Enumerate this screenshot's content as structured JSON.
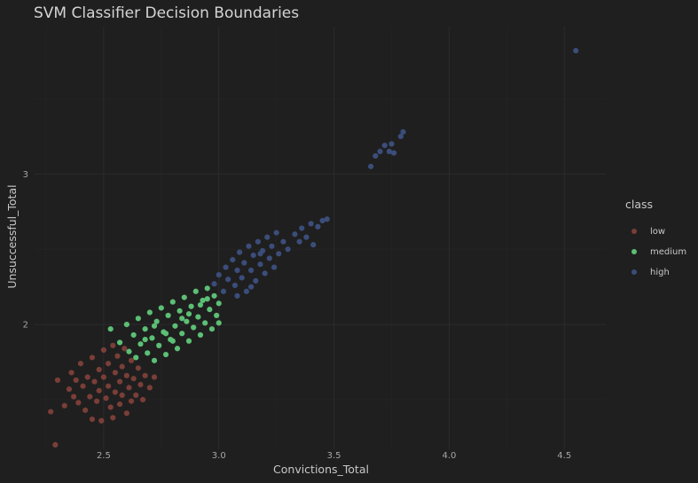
{
  "chart_data": {
    "type": "scatter",
    "title": "SVM Classifier Decision Boundaries",
    "xlabel": "Convictions_Total",
    "ylabel": "Unsuccessful_Total",
    "xlim": [
      2.2,
      4.68
    ],
    "ylim": [
      1.17,
      3.98
    ],
    "x_ticks": [
      "2.5",
      "3.0",
      "3.5",
      "4.0",
      "4.5"
    ],
    "y_ticks": [
      "2",
      "3"
    ],
    "grid": true,
    "legend_title": "class",
    "legend_position": "right",
    "series": [
      {
        "name": "low",
        "color": "#7a3e38",
        "points": [
          [
            2.27,
            1.42
          ],
          [
            2.29,
            1.2
          ],
          [
            2.3,
            1.63
          ],
          [
            2.33,
            1.46
          ],
          [
            2.35,
            1.57
          ],
          [
            2.36,
            1.68
          ],
          [
            2.37,
            1.52
          ],
          [
            2.38,
            1.63
          ],
          [
            2.39,
            1.48
          ],
          [
            2.4,
            1.74
          ],
          [
            2.41,
            1.59
          ],
          [
            2.42,
            1.43
          ],
          [
            2.43,
            1.65
          ],
          [
            2.44,
            1.52
          ],
          [
            2.45,
            1.78
          ],
          [
            2.45,
            1.37
          ],
          [
            2.46,
            1.62
          ],
          [
            2.47,
            1.49
          ],
          [
            2.48,
            1.7
          ],
          [
            2.48,
            1.56
          ],
          [
            2.49,
            1.36
          ],
          [
            2.5,
            1.83
          ],
          [
            2.5,
            1.65
          ],
          [
            2.51,
            1.51
          ],
          [
            2.52,
            1.74
          ],
          [
            2.52,
            1.59
          ],
          [
            2.53,
            1.45
          ],
          [
            2.54,
            1.86
          ],
          [
            2.54,
            1.38
          ],
          [
            2.55,
            1.68
          ],
          [
            2.55,
            1.55
          ],
          [
            2.56,
            1.79
          ],
          [
            2.57,
            1.47
          ],
          [
            2.57,
            1.62
          ],
          [
            2.58,
            1.72
          ],
          [
            2.58,
            1.53
          ],
          [
            2.59,
            1.84
          ],
          [
            2.6,
            1.41
          ],
          [
            2.6,
            1.66
          ],
          [
            2.61,
            1.58
          ],
          [
            2.62,
            1.76
          ],
          [
            2.62,
            1.49
          ],
          [
            2.63,
            1.64
          ],
          [
            2.64,
            1.53
          ],
          [
            2.65,
            1.71
          ],
          [
            2.66,
            1.6
          ],
          [
            2.67,
            1.5
          ],
          [
            2.68,
            1.66
          ],
          [
            2.7,
            1.58
          ],
          [
            2.72,
            1.65
          ]
        ]
      },
      {
        "name": "medium",
        "color": "#5cbf75",
        "points": [
          [
            2.53,
            1.97
          ],
          [
            2.57,
            1.88
          ],
          [
            2.6,
            2.0
          ],
          [
            2.61,
            1.82
          ],
          [
            2.63,
            1.93
          ],
          [
            2.64,
            1.78
          ],
          [
            2.65,
            2.04
          ],
          [
            2.66,
            1.87
          ],
          [
            2.68,
            1.97
          ],
          [
            2.69,
            1.81
          ],
          [
            2.7,
            2.08
          ],
          [
            2.71,
            1.91
          ],
          [
            2.72,
            1.76
          ],
          [
            2.73,
            2.02
          ],
          [
            2.74,
            1.86
          ],
          [
            2.75,
            2.11
          ],
          [
            2.76,
            1.95
          ],
          [
            2.77,
            1.8
          ],
          [
            2.78,
            2.06
          ],
          [
            2.79,
            1.9
          ],
          [
            2.8,
            2.15
          ],
          [
            2.81,
            1.99
          ],
          [
            2.82,
            1.84
          ],
          [
            2.83,
            2.09
          ],
          [
            2.84,
            1.94
          ],
          [
            2.85,
            2.18
          ],
          [
            2.86,
            2.02
          ],
          [
            2.87,
            1.89
          ],
          [
            2.88,
            2.12
          ],
          [
            2.89,
            1.98
          ],
          [
            2.9,
            2.22
          ],
          [
            2.91,
            2.05
          ],
          [
            2.92,
            1.93
          ],
          [
            2.93,
            2.16
          ],
          [
            2.94,
            2.01
          ],
          [
            2.95,
            2.24
          ],
          [
            2.96,
            2.1
          ],
          [
            2.97,
            1.97
          ],
          [
            2.98,
            2.19
          ],
          [
            2.99,
            2.06
          ],
          [
            3.0,
            2.14
          ],
          [
            3.0,
            2.01
          ],
          [
            2.8,
            1.89
          ],
          [
            2.72,
            1.99
          ],
          [
            2.87,
            2.07
          ],
          [
            2.92,
            2.13
          ],
          [
            2.84,
            2.04
          ],
          [
            2.68,
            1.9
          ],
          [
            2.77,
            1.94
          ],
          [
            2.95,
            2.17
          ]
        ]
      },
      {
        "name": "high",
        "color": "#3b4d7a",
        "points": [
          [
            2.98,
            2.27
          ],
          [
            3.0,
            2.33
          ],
          [
            3.02,
            2.22
          ],
          [
            3.03,
            2.38
          ],
          [
            3.04,
            2.3
          ],
          [
            3.06,
            2.43
          ],
          [
            3.07,
            2.26
          ],
          [
            3.08,
            2.36
          ],
          [
            3.09,
            2.48
          ],
          [
            3.1,
            2.31
          ],
          [
            3.11,
            2.41
          ],
          [
            3.12,
            2.22
          ],
          [
            3.13,
            2.52
          ],
          [
            3.14,
            2.36
          ],
          [
            3.15,
            2.46
          ],
          [
            3.16,
            2.29
          ],
          [
            3.17,
            2.55
          ],
          [
            3.18,
            2.4
          ],
          [
            3.19,
            2.49
          ],
          [
            3.2,
            2.34
          ],
          [
            3.21,
            2.58
          ],
          [
            3.22,
            2.44
          ],
          [
            3.23,
            2.52
          ],
          [
            3.24,
            2.38
          ],
          [
            3.25,
            2.61
          ],
          [
            3.26,
            2.47
          ],
          [
            3.28,
            2.55
          ],
          [
            3.3,
            2.5
          ],
          [
            3.33,
            2.6
          ],
          [
            3.35,
            2.55
          ],
          [
            3.36,
            2.64
          ],
          [
            3.38,
            2.58
          ],
          [
            3.4,
            2.67
          ],
          [
            3.41,
            2.53
          ],
          [
            3.43,
            2.65
          ],
          [
            3.45,
            2.69
          ],
          [
            3.47,
            2.7
          ],
          [
            3.14,
            2.25
          ],
          [
            3.08,
            2.19
          ],
          [
            3.18,
            2.47
          ],
          [
            3.66,
            3.05
          ],
          [
            3.68,
            3.12
          ],
          [
            3.7,
            3.15
          ],
          [
            3.72,
            3.19
          ],
          [
            3.74,
            3.15
          ],
          [
            3.75,
            3.2
          ],
          [
            3.76,
            3.14
          ],
          [
            3.79,
            3.25
          ],
          [
            3.8,
            3.28
          ],
          [
            4.55,
            3.82
          ]
        ]
      }
    ]
  }
}
